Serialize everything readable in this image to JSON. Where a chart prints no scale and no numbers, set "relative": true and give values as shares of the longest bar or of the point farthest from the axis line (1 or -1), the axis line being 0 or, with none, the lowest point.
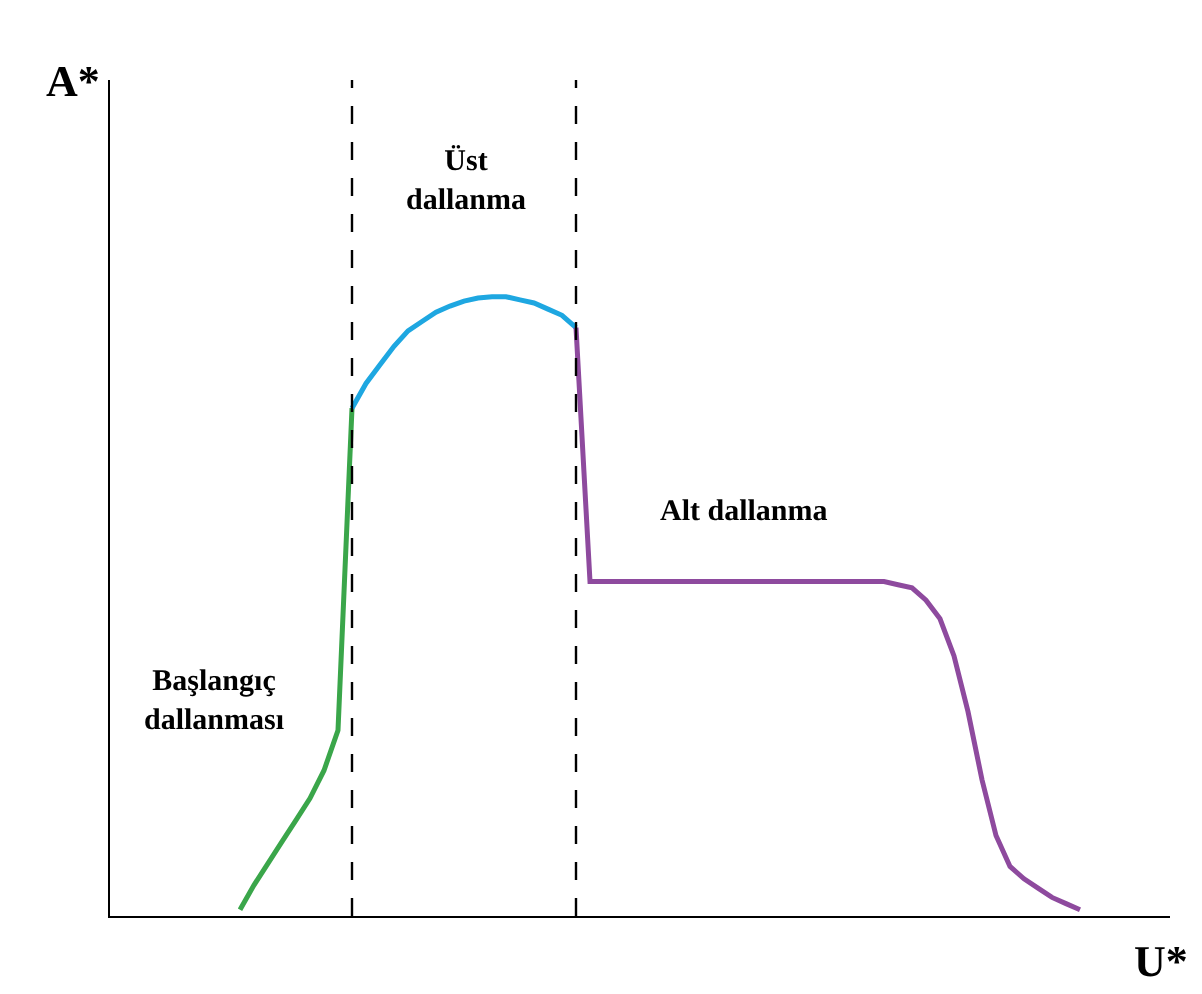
{
  "chart_data": {
    "type": "line",
    "relative": true,
    "xlabel": "U*",
    "categories": [
      null,
      null,
      null,
      null,
      null,
      null,
      null,
      null,
      null,
      null,
      null,
      null,
      null,
      null,
      null,
      null,
      null,
      null,
      null,
      null,
      null,
      null,
      null,
      null,
      null,
      null,
      null,
      null,
      null,
      null,
      null,
      null,
      null,
      null,
      null,
      null,
      null,
      null,
      null,
      null,
      null,
      null,
      null,
      null,
      null,
      null,
      null,
      null,
      null,
      null,
      null,
      null,
      null,
      null,
      null,
      null,
      null,
      null,
      null,
      null,
      null
    ],
    "series": [
      {
        "color": "#3aa64a",
        "values": [
          0.01,
          0.05,
          0.085,
          0.12,
          0.155,
          0.19,
          0.235,
          0.3,
          0.82,
          null,
          null,
          null,
          null,
          null,
          null,
          null,
          null,
          null,
          null,
          null,
          null,
          null,
          null,
          null,
          null,
          null,
          null,
          null,
          null,
          null,
          null,
          null,
          null,
          null,
          null,
          null,
          null,
          null,
          null,
          null,
          null,
          null,
          null,
          null,
          null,
          null,
          null,
          null,
          null,
          null,
          null,
          null,
          null,
          null,
          null,
          null,
          null,
          null,
          null,
          null,
          null
        ]
      },
      {
        "color": "#1ea7e1",
        "values": [
          null,
          null,
          null,
          null,
          null,
          null,
          null,
          null,
          0.82,
          0.86,
          0.89,
          0.92,
          0.945,
          0.96,
          0.975,
          0.985,
          0.993,
          0.998,
          1.0,
          1.0,
          0.995,
          0.99,
          0.98,
          0.97,
          0.95,
          null,
          null,
          null,
          null,
          null,
          null,
          null,
          null,
          null,
          null,
          null,
          null,
          null,
          null,
          null,
          null,
          null,
          null,
          null,
          null,
          null,
          null,
          null,
          null,
          null,
          null,
          null,
          null,
          null,
          null,
          null,
          null,
          null,
          null,
          null,
          null
        ]
      },
      {
        "color": "#8e4a9e",
        "values": [
          null,
          null,
          null,
          null,
          null,
          null,
          null,
          null,
          null,
          null,
          null,
          null,
          null,
          null,
          null,
          null,
          null,
          null,
          null,
          null,
          null,
          null,
          null,
          null,
          0.95,
          0.54,
          0.54,
          0.54,
          0.54,
          0.54,
          0.54,
          0.54,
          0.54,
          0.54,
          0.54,
          0.54,
          0.54,
          0.54,
          0.54,
          0.54,
          0.54,
          0.54,
          0.54,
          0.54,
          0.54,
          0.54,
          0.54,
          0.535,
          0.53,
          0.51,
          0.48,
          0.42,
          0.33,
          0.22,
          0.13,
          0.08,
          0.06,
          0.045,
          0.03,
          0.02,
          0.01
        ]
      }
    ],
    "ref_lines": [
      {
        "axis": "x",
        "color": "#000000",
        "line_style": "dashed"
      },
      {
        "axis": "x",
        "color": "#000000",
        "line_style": "dashed"
      }
    ],
    "annotations": [
      "Başlangıç\ndallanması",
      "Üst\ndallanma",
      "Alt dallanma",
      "A*"
    ],
    "marker": "none",
    "line_style": "solid"
  }
}
